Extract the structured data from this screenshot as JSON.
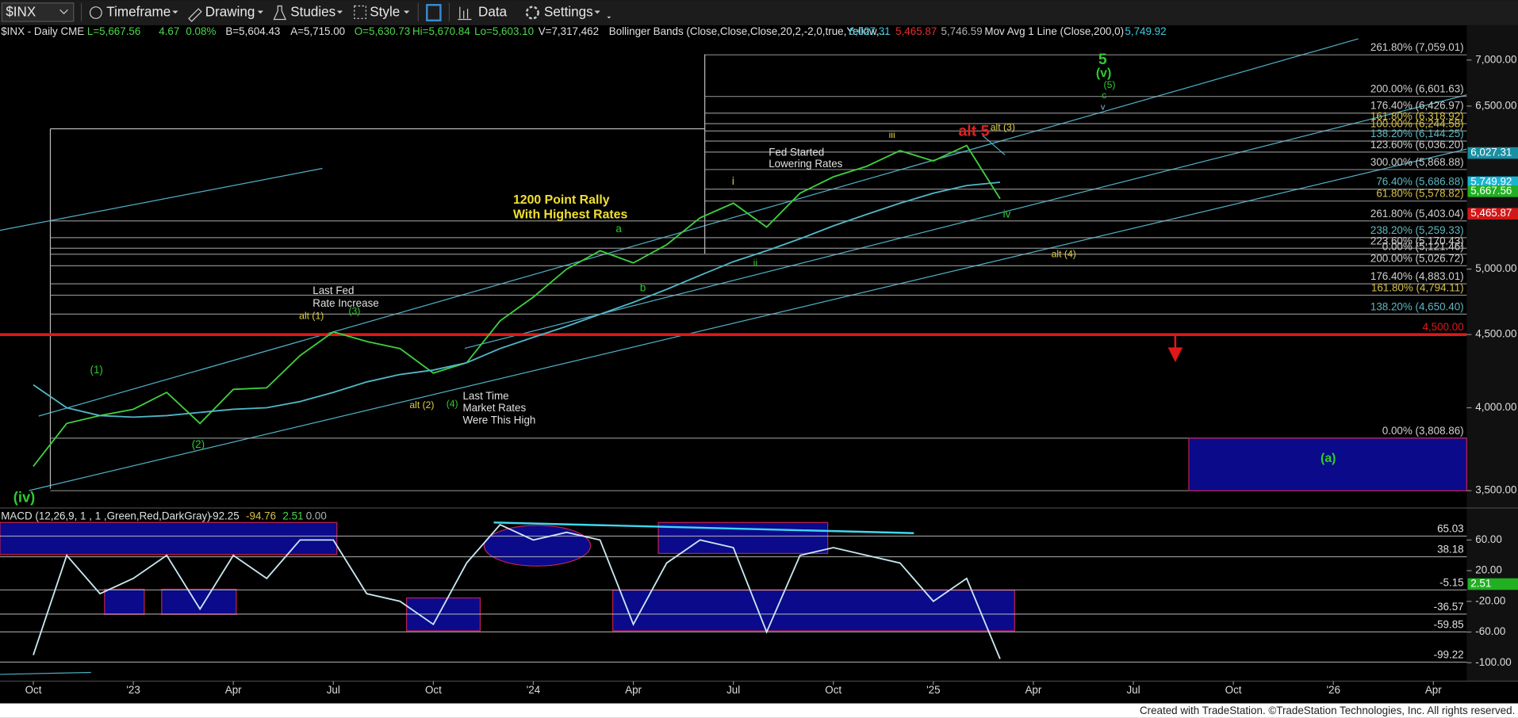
{
  "toolbar": {
    "items": [
      "$INX",
      "Timeframe",
      "Drawing",
      "Studies",
      "Style",
      "Data",
      "Settings"
    ]
  },
  "footer": "Created with TradeStation. ©TradeStation Technologies, Inc. All rights reserved.",
  "chart_data": [
    {
      "type": "line",
      "log": true,
      "header": [
        {
          "text": "$INX - Daily  CME",
          "color": "#e0e0e0"
        },
        {
          "text": "L=5,667.56",
          "color": "#4cd64c"
        },
        {
          "text": "4.67",
          "color": "#4cd64c"
        },
        {
          "text": "0.08%",
          "color": "#4cd64c"
        },
        {
          "text": "B=5,604.43",
          "color": "#e0e0e0"
        },
        {
          "text": "A=5,715.00",
          "color": "#e0e0e0"
        },
        {
          "text": "O=5,630.73",
          "color": "#4cd64c"
        },
        {
          "text": "Hi=5,670.84",
          "color": "#4cd64c"
        },
        {
          "text": "Lo=5,603.10",
          "color": "#4cd64c"
        },
        {
          "text": "V=7,317,462",
          "color": "#e0e0e0"
        },
        {
          "text": "Bollinger Bands (Close,Close,Close,20,2,-2,0,true,Yellow,...",
          "color": "#e0e0e0"
        },
        {
          "text": "6,027.31",
          "color": "#3ec8dc"
        },
        {
          "text": "5,465.87",
          "color": "#e03030"
        },
        {
          "text": "5,746.59",
          "color": "#b0b0b0"
        },
        {
          "text": "Mov Avg 1 Line (Close,200,0)",
          "color": "#e0e0e0"
        },
        {
          "text": "5,749.92",
          "color": "#3ec8dc"
        }
      ],
      "xlim": [
        "2022-09",
        "2026-05"
      ],
      "xticks": [
        {
          "value": "2022-10",
          "label": "Oct"
        },
        {
          "value": "2023-01",
          "label": "'23"
        },
        {
          "value": "2023-04",
          "label": "Apr"
        },
        {
          "value": "2023-07",
          "label": "Jul"
        },
        {
          "value": "2023-10",
          "label": "Oct"
        },
        {
          "value": "2024-01",
          "label": "'24"
        },
        {
          "value": "2024-04",
          "label": "Apr"
        },
        {
          "value": "2024-07",
          "label": "Jul"
        },
        {
          "value": "2024-10",
          "label": "Oct"
        },
        {
          "value": "2025-01",
          "label": "'25"
        },
        {
          "value": "2025-04",
          "label": "Apr"
        },
        {
          "value": "2025-07",
          "label": "Jul"
        },
        {
          "value": "2025-10",
          "label": "Oct"
        },
        {
          "value": "2026-01",
          "label": "'26"
        },
        {
          "value": "2026-04",
          "label": "Apr"
        }
      ],
      "ylim": [
        3420,
        7380
      ],
      "yticks": [
        {
          "value": 3500,
          "label": "3,500.00"
        },
        {
          "value": 4000,
          "label": "4,000.00"
        },
        {
          "value": 4500,
          "label": "4,500.00"
        },
        {
          "value": 5000,
          "label": "5,000.00"
        },
        {
          "value": 6500,
          "label": "6,500.00"
        },
        {
          "value": 7000,
          "label": "7,000.00"
        }
      ],
      "x": [
        "2022-10",
        "2022-11",
        "2022-12",
        "2023-01",
        "2023-02",
        "2023-03",
        "2023-04",
        "2023-05",
        "2023-06",
        "2023-07",
        "2023-08",
        "2023-09",
        "2023-10",
        "2023-11",
        "2023-12",
        "2024-01",
        "2024-02",
        "2024-03",
        "2024-04",
        "2024-05",
        "2024-06",
        "2024-07",
        "2024-08",
        "2024-09",
        "2024-10",
        "2024-11",
        "2024-12",
        "2025-01",
        "2025-02",
        "2025-03"
      ],
      "series": [
        {
          "color": "#3fcf3f",
          "values": [
            3640,
            3900,
            3950,
            3990,
            4100,
            3900,
            4120,
            4130,
            4350,
            4520,
            4450,
            4400,
            4230,
            4300,
            4600,
            4780,
            5000,
            5150,
            5050,
            5200,
            5430,
            5560,
            5350,
            5650,
            5800,
            5900,
            6050,
            5950,
            6100,
            5600
          ]
        },
        {
          "color": "#4fb8c8",
          "values": [
            4150,
            4000,
            3950,
            3940,
            3950,
            3970,
            3990,
            4000,
            4040,
            4100,
            4170,
            4220,
            4250,
            4300,
            4400,
            4480,
            4560,
            4650,
            4740,
            4840,
            4950,
            5060,
            5150,
            5250,
            5360,
            5460,
            5560,
            5650,
            5720,
            5750
          ]
        }
      ],
      "levels": [
        {
          "value": 7059.01,
          "label": "261.80% (7,059.01)",
          "color": "#d0d0d0"
        },
        {
          "value": 6601.63,
          "label": "200.00% (6,601.63)",
          "color": "#d0d0d0"
        },
        {
          "value": 6426.97,
          "label": "176.40% (6,426.97)",
          "color": "#d0d0d0"
        },
        {
          "value": 6318.92,
          "label": "161.80% (6,318.92)",
          "color": "#d6c04a"
        },
        {
          "value": 6244.58,
          "label": "100.00% (6,244.58)",
          "color": "#d6c04a"
        },
        {
          "value": 6144.25,
          "label": "138.20% (6,144.25)",
          "color": "#5fb8c0"
        },
        {
          "value": 6036.2,
          "label": "123.60% (6,036.20)",
          "color": "#d0d0d0"
        },
        {
          "value": 5868.88,
          "label": "300.00% (5,868.88)",
          "color": "#d0d0d0"
        },
        {
          "value": 5686.88,
          "label": "76.40% (5,686.88)",
          "color": "#5fb8c0"
        },
        {
          "value": 5578.82,
          "label": "61.80% (5,578.82)",
          "color": "#d6c04a"
        },
        {
          "value": 5403.04,
          "label": "261.80% (5,403.04)",
          "color": "#d0d0d0"
        },
        {
          "value": 5259.33,
          "label": "238.20% (5,259.33)",
          "color": "#5fb8c0"
        },
        {
          "value": 5170.43,
          "label": "223.60% (5,170.43)",
          "color": "#d0d0d0"
        },
        {
          "value": 5121.46,
          "label": "0.00% (5,121.46)",
          "color": "#d0d0d0"
        },
        {
          "value": 5026.72,
          "label": "200.00% (5,026.72)",
          "color": "#d0d0d0"
        },
        {
          "value": 4883.01,
          "label": "176.40% (4,883.01)",
          "color": "#d0d0d0"
        },
        {
          "value": 4794.11,
          "label": "161.80% (4,794.11)",
          "color": "#d6c04a"
        },
        {
          "value": 4650.4,
          "label": "138.20% (4,650.40)",
          "color": "#5fb8c0"
        },
        {
          "value": 4500,
          "label": "4,500.00",
          "color": "#e01818"
        },
        {
          "value": 3808.86,
          "label": "0.00% (3,808.86)",
          "color": "#d0d0d0"
        },
        {
          "value": 3500,
          "label": "3,500.00",
          "color": "#d0d0d0"
        }
      ],
      "price_tags": [
        {
          "value": 6027.31,
          "label": "6,027.31",
          "color": "#1a8fa3"
        },
        {
          "value": 5749.92,
          "label": "5,749.92",
          "color": "#19b4d4"
        },
        {
          "value": 5667.56,
          "label": "5,667.56",
          "color": "#22b022"
        },
        {
          "value": 5465.87,
          "label": "5,465.87",
          "color": "#d01818"
        }
      ],
      "annotations": [
        {
          "text": "5",
          "color": "#2ecc2e"
        },
        {
          "text": "(v)",
          "color": "#2ecc2e"
        },
        {
          "text": "(5)",
          "color": "#2ecc2e"
        },
        {
          "text": "c",
          "color": "#2ecc2e"
        },
        {
          "text": "v",
          "color": "#7fb8e0"
        },
        {
          "text": "alt 5",
          "color": "#e02020"
        },
        {
          "text": "alt (3)",
          "color": "#e0d040"
        },
        {
          "text": "iii",
          "color": "#e0d040"
        },
        {
          "text": "Fed Started",
          "color": "#e0e0e0"
        },
        {
          "text": "Lowering Rates",
          "color": "#e0e0e0"
        },
        {
          "text": "i",
          "color": "#e0d040"
        },
        {
          "text": "1200 Point Rally",
          "color": "#f0e030"
        },
        {
          "text": "With Highest Rates",
          "color": "#f0e030"
        },
        {
          "text": "a",
          "color": "#2ecc2e"
        },
        {
          "text": "b",
          "color": "#2ecc2e"
        },
        {
          "text": "ii",
          "color": "#2ecc2e"
        },
        {
          "text": "iv",
          "color": "#2ecc2e"
        },
        {
          "text": "alt (4)",
          "color": "#e0d040"
        },
        {
          "text": "Last Fed",
          "color": "#e0e0e0"
        },
        {
          "text": "Rate Increase",
          "color": "#e0e0e0"
        },
        {
          "text": "alt (1)",
          "color": "#e0d040"
        },
        {
          "text": "(3)",
          "color": "#2ecc2e"
        },
        {
          "text": "(1)",
          "color": "#2ecc2e"
        },
        {
          "text": "alt (2)",
          "color": "#e0d040"
        },
        {
          "text": "(4)",
          "color": "#2ecc2e"
        },
        {
          "text": "Last Time",
          "color": "#e0e0e0"
        },
        {
          "text": "Market Rates",
          "color": "#e0e0e0"
        },
        {
          "text": "Were This High",
          "color": "#e0e0e0"
        },
        {
          "text": "(2)",
          "color": "#2ecc2e"
        },
        {
          "text": "(iv)",
          "color": "#2ecc2e"
        },
        {
          "text": "(a)",
          "color": "#2ecc2e"
        }
      ]
    },
    {
      "type": "line",
      "header": [
        {
          "text": "MACD (12,26,9, 1 , 1 ,Green,Red,DarkGray)",
          "color": "#e0e0e0"
        },
        {
          "text": "-92.25",
          "color": "#e0e0e0"
        },
        {
          "text": "-94.76",
          "color": "#d6c04a"
        },
        {
          "text": "2.51",
          "color": "#4cd64c"
        },
        {
          "text": "0.00",
          "color": "#b0b0b0"
        }
      ],
      "ylim": [
        -119,
        98
      ],
      "yticks": [
        {
          "value": 60,
          "label": "60.00"
        },
        {
          "value": 20,
          "label": "20.00"
        },
        {
          "value": -20,
          "label": "-20.00"
        },
        {
          "value": -60,
          "label": "-60.00"
        },
        {
          "value": -100,
          "label": "-100.00"
        }
      ],
      "series": [
        {
          "color": "#c8e8f0",
          "values": [
            -90,
            40,
            -10,
            10,
            40,
            -30,
            40,
            10,
            60,
            60,
            -10,
            -20,
            -50,
            30,
            80,
            60,
            70,
            60,
            -50,
            30,
            60,
            50,
            -60,
            40,
            50,
            40,
            30,
            -20,
            10,
            -95
          ]
        }
      ],
      "levels": [
        65.03,
        38.18,
        -5.15,
        -36.57,
        -59.85,
        -99.22
      ],
      "tag": {
        "value": 2.51,
        "color": "#22b022"
      }
    }
  ]
}
